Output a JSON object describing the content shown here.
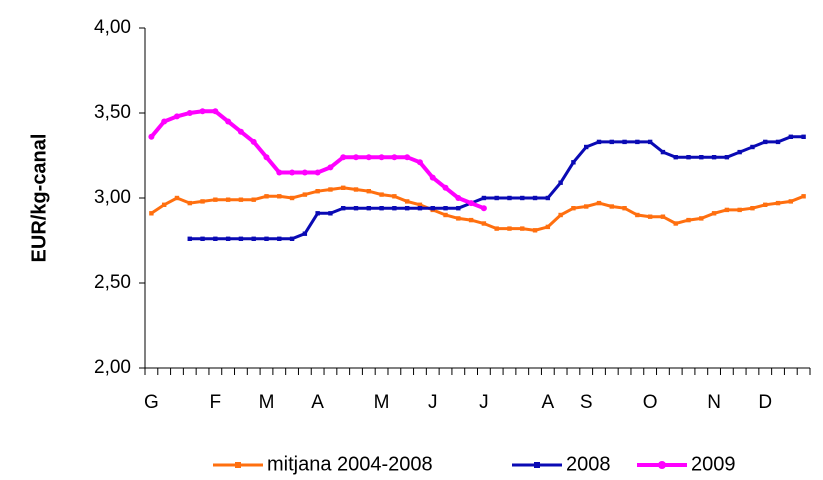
{
  "chart_data": {
    "type": "line",
    "y_label": "EUR/kg-canal",
    "categories": [
      "G",
      null,
      null,
      null,
      null,
      "F",
      null,
      null,
      null,
      "M",
      null,
      null,
      null,
      "A",
      null,
      null,
      null,
      null,
      "M",
      null,
      null,
      null,
      "J",
      null,
      null,
      null,
      "J",
      null,
      null,
      null,
      null,
      "A",
      null,
      null,
      "S",
      null,
      null,
      null,
      null,
      "O",
      null,
      null,
      null,
      null,
      "N",
      null,
      null,
      null,
      "D",
      null,
      null,
      null
    ],
    "series": [
      {
        "name": "mitjana 2004-2008",
        "color": "#ff6f0f",
        "marker": "square",
        "values": [
          2.91,
          2.96,
          3.0,
          2.97,
          2.98,
          2.99,
          2.99,
          2.99,
          2.99,
          3.01,
          3.01,
          3.0,
          3.02,
          3.04,
          3.05,
          3.06,
          3.05,
          3.04,
          3.02,
          3.01,
          2.98,
          2.96,
          2.93,
          2.9,
          2.88,
          2.87,
          2.85,
          2.82,
          2.82,
          2.82,
          2.81,
          2.83,
          2.9,
          2.94,
          2.95,
          2.97,
          2.95,
          2.94,
          2.9,
          2.89,
          2.89,
          2.85,
          2.87,
          2.88,
          2.91,
          2.93,
          2.93,
          2.94,
          2.96,
          2.97,
          2.98,
          3.01
        ]
      },
      {
        "name": "2008",
        "color": "#0a0ab4",
        "marker": "square",
        "values": [
          null,
          null,
          null,
          2.76,
          2.76,
          2.76,
          2.76,
          2.76,
          2.76,
          2.76,
          2.76,
          2.76,
          2.79,
          2.91,
          2.91,
          2.94,
          2.94,
          2.94,
          2.94,
          2.94,
          2.94,
          2.94,
          2.94,
          2.94,
          2.94,
          2.97,
          3.0,
          3.0,
          3.0,
          3.0,
          3.0,
          3.0,
          3.09,
          3.21,
          3.3,
          3.33,
          3.33,
          3.33,
          3.33,
          3.33,
          3.27,
          3.24,
          3.24,
          3.24,
          3.24,
          3.24,
          3.27,
          3.3,
          3.33,
          3.33,
          3.36,
          3.36
        ]
      },
      {
        "name": "2009",
        "color": "#ff00ff",
        "marker": "circle",
        "values": [
          3.36,
          3.45,
          3.48,
          3.5,
          3.51,
          3.51,
          3.45,
          3.39,
          3.33,
          3.24,
          3.15,
          3.15,
          3.15,
          3.15,
          3.18,
          3.24,
          3.24,
          3.24,
          3.24,
          3.24,
          3.24,
          3.21,
          3.12,
          3.06,
          3.0,
          2.97,
          2.94,
          null,
          null,
          null,
          null,
          null,
          null,
          null,
          null,
          null,
          null,
          null,
          null,
          null,
          null,
          null,
          null,
          null,
          null,
          null,
          null,
          null,
          null,
          null,
          null,
          null
        ]
      }
    ],
    "ylim": [
      2.0,
      4.0
    ],
    "yticks": [
      {
        "value": 2.0,
        "label": "2,00"
      },
      {
        "value": 2.5,
        "label": "2,50"
      },
      {
        "value": 3.0,
        "label": "3,00"
      },
      {
        "value": 3.5,
        "label": "3,50"
      },
      {
        "value": 4.0,
        "label": "4,00"
      }
    ],
    "grid": false,
    "legend": "bottom"
  }
}
